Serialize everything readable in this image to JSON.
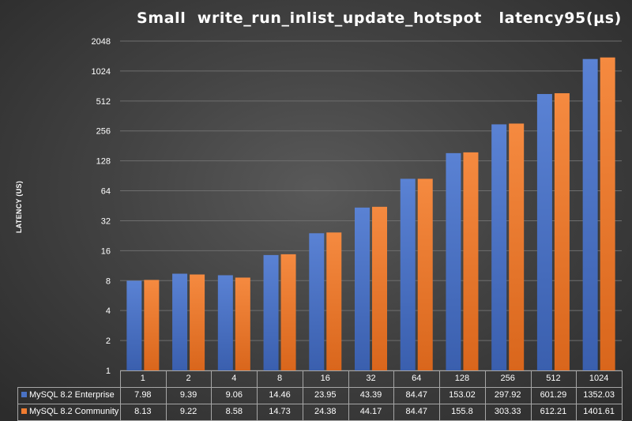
{
  "chart_data": {
    "type": "bar",
    "title": "Small  write_run_inlist_update_hotspot   latency95(µs)",
    "ylabel": "LATENCY (US)",
    "xlabel": "",
    "yscale": "log2",
    "ylim": [
      1,
      2048
    ],
    "yticks": [
      "1",
      "2",
      "4",
      "8",
      "16",
      "32",
      "64",
      "128",
      "256",
      "512",
      "1024",
      "2048"
    ],
    "grid": true,
    "legend_placement": "data-table-below",
    "categories": [
      "1",
      "2",
      "4",
      "8",
      "16",
      "32",
      "64",
      "128",
      "256",
      "512",
      "1024"
    ],
    "series": [
      {
        "name": "MySQL 8.2 Enterprise",
        "color": "#4a72c4",
        "values": [
          7.98,
          9.39,
          9.06,
          14.46,
          23.95,
          43.39,
          84.47,
          153.02,
          297.92,
          601.29,
          1352.03
        ],
        "labels": [
          "7.98",
          "9.39",
          "9.06",
          "14.46",
          "23.95",
          "43.39",
          "84.47",
          "153.02",
          "297.92",
          "601.29",
          "1352.03"
        ]
      },
      {
        "name": "MySQL 8.2 Community",
        "color": "#f07c30",
        "values": [
          8.13,
          9.22,
          8.58,
          14.73,
          24.38,
          44.17,
          84.47,
          155.8,
          303.33,
          612.21,
          1401.61
        ],
        "labels": [
          "8.13",
          "9.22",
          "8.58",
          "14.73",
          "24.38",
          "44.17",
          "84.47",
          "155.8",
          "303.33",
          "612.21",
          "1401.61"
        ]
      }
    ]
  }
}
